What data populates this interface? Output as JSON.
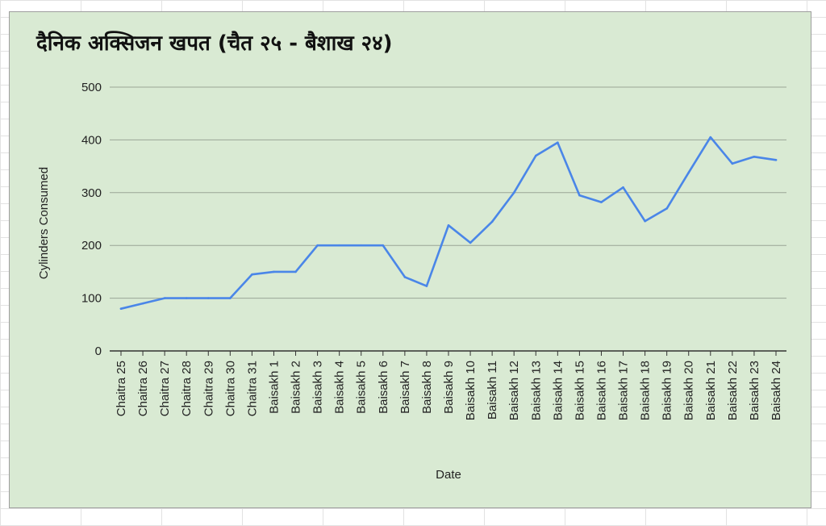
{
  "chart_data": {
    "type": "line",
    "title": "दैनिक अक्सिजन खपत (चैत २५ - बैशाख २४)",
    "xlabel": "Date",
    "ylabel": "Cylinders Consumed",
    "ylim": [
      0,
      500
    ],
    "yticks": [
      0,
      100,
      200,
      300,
      400,
      500
    ],
    "grid": true,
    "legend": "none",
    "categories": [
      "Chaitra 25",
      "Chaitra 26",
      "Chaitra 27",
      "Chaitra 28",
      "Chaitra 29",
      "Chaitra 30",
      "Chaitra 31",
      "Baisakh 1",
      "Baisakh 2",
      "Baisakh 3",
      "Baisakh 4",
      "Baisakh 5",
      "Baisakh 6",
      "Baisakh 7",
      "Baisakh 8",
      "Baisakh 9",
      "Baisakh 10",
      "Baisakh 11",
      "Baisakh 12",
      "Baisakh 13",
      "Baisakh 14",
      "Baisakh 15",
      "Baisakh 16",
      "Baisakh 17",
      "Baisakh 18",
      "Baisakh 19",
      "Baisakh 20",
      "Baisakh 21",
      "Baisakh 22",
      "Baisakh 23",
      "Baisakh 24"
    ],
    "series": [
      {
        "values": [
          80,
          90,
          100,
          100,
          100,
          100,
          145,
          150,
          150,
          200,
          200,
          200,
          200,
          140,
          123,
          238,
          205,
          245,
          300,
          370,
          395,
          295,
          282,
          310,
          246,
          270,
          338,
          405,
          355,
          368,
          362
        ],
        "color": "#4a86e8"
      }
    ]
  }
}
